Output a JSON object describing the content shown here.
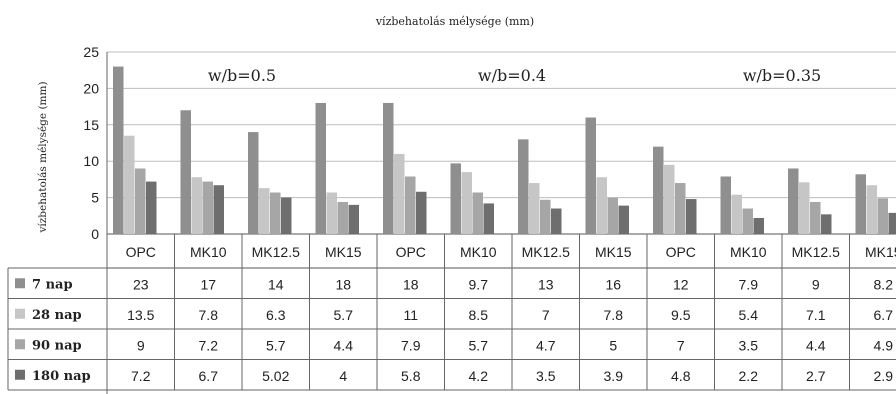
{
  "chart_data": {
    "type": "bar",
    "title": "vízbehatolás mélysége (mm)",
    "ylabel": "vízbehatolás mélysége (mm)",
    "ylim": [
      0,
      25
    ],
    "yticks": [
      0,
      5,
      10,
      15,
      20,
      25
    ],
    "grid": true,
    "legend": "table-below",
    "groups": [
      {
        "label": "w/b=0.5",
        "categories": [
          "OPC",
          "MK10",
          "MK12.5",
          "MK15"
        ]
      },
      {
        "label": "w/b=0.4",
        "categories": [
          "OPC",
          "MK10",
          "MK12.5",
          "MK15"
        ]
      },
      {
        "label": "w/b=0.35",
        "categories": [
          "OPC",
          "MK10",
          "MK12.5",
          "MK15"
        ]
      }
    ],
    "categories": [
      "OPC",
      "MK10",
      "MK12.5",
      "MK15",
      "OPC",
      "MK10",
      "MK12.5",
      "MK15",
      "OPC",
      "MK10",
      "MK12.5",
      "MK15"
    ],
    "series": [
      {
        "name": "7 nap",
        "color": "#8f8f8f",
        "values": [
          23,
          17,
          14,
          18,
          18,
          9.7,
          13,
          16,
          12,
          7.9,
          9,
          8.2
        ]
      },
      {
        "name": "28 nap",
        "color": "#c6c6c6",
        "values": [
          13.5,
          7.8,
          6.3,
          5.7,
          11,
          8.5,
          7,
          7.8,
          9.5,
          5.4,
          7.1,
          6.7
        ]
      },
      {
        "name": "90 nap",
        "color": "#a6a6a6",
        "values": [
          9,
          7.2,
          5.7,
          4.4,
          7.9,
          5.7,
          4.7,
          5,
          7,
          3.5,
          4.4,
          4.9
        ]
      },
      {
        "name": "180 nap",
        "color": "#6e6e6e",
        "values": [
          7.2,
          6.7,
          5.02,
          4,
          5.8,
          4.2,
          3.5,
          3.9,
          4.8,
          2.2,
          2.7,
          2.9
        ]
      }
    ]
  }
}
